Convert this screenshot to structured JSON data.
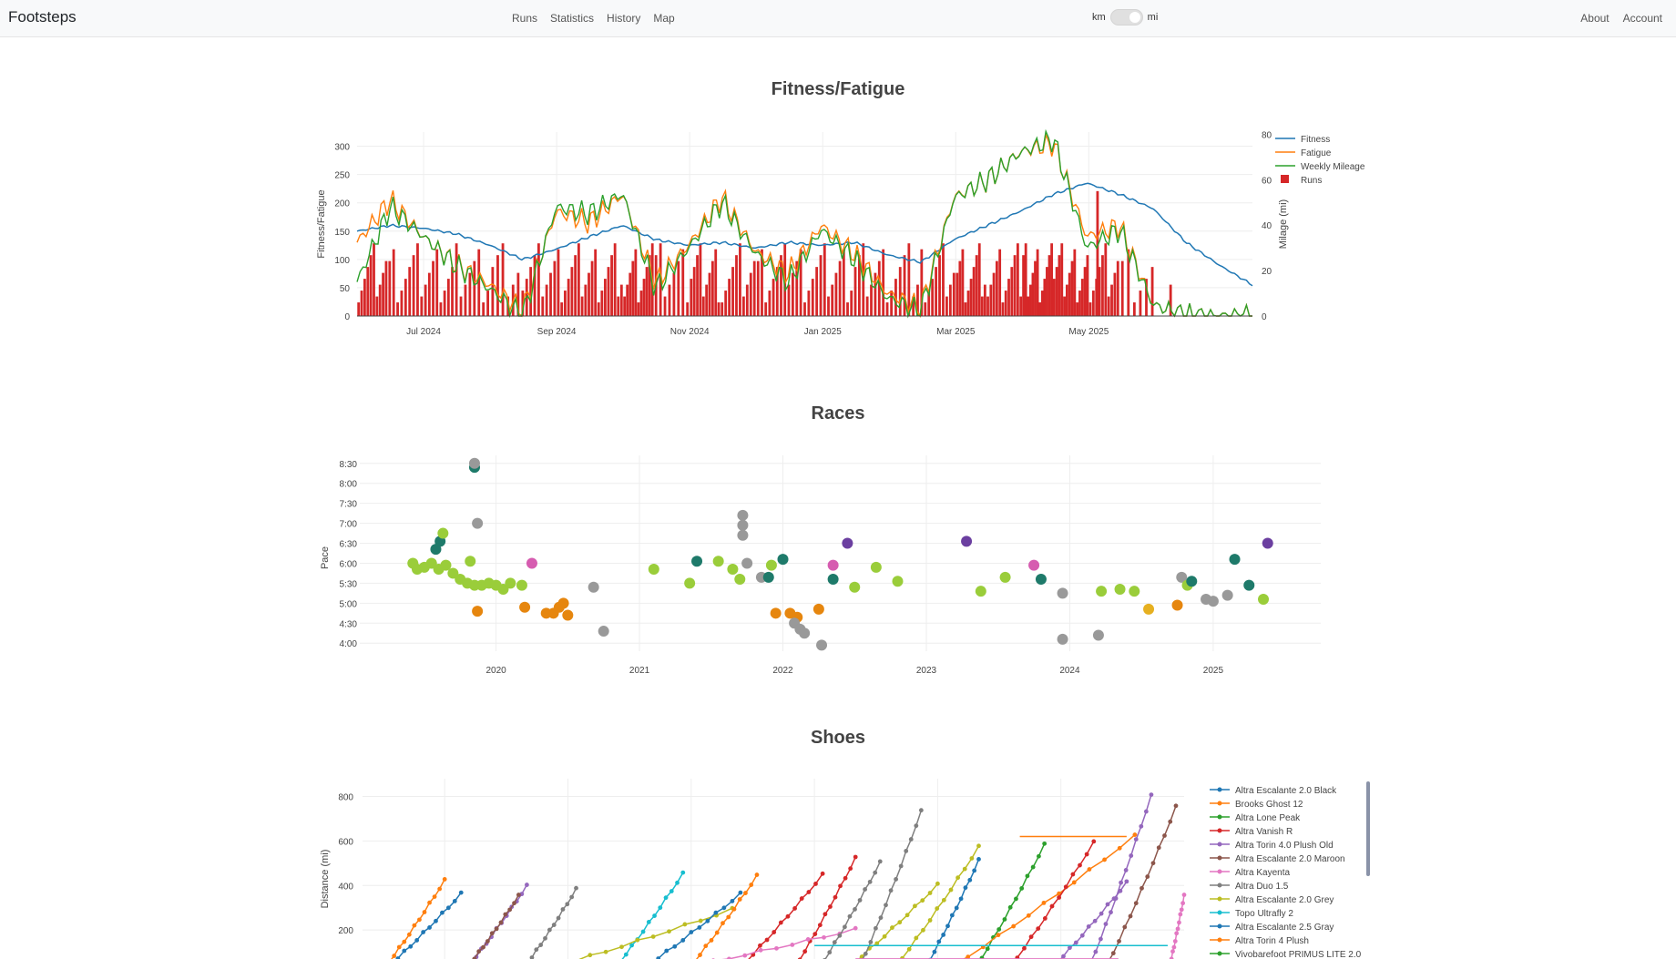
{
  "nav": {
    "brand": "Footsteps",
    "links": [
      "Runs",
      "Statistics",
      "History",
      "Map"
    ],
    "units_left": "km",
    "units_right": "mi",
    "right_links": [
      "About",
      "Account"
    ]
  },
  "colors": {
    "fitness": "#1f77b4",
    "fatigue": "#ff7f0e",
    "weekly": "#2ca02c",
    "runs": "#d62728"
  },
  "chart_data": [
    {
      "type": "line",
      "title": "Fitness/Fatigue",
      "ylabel": "Fitness/Fatigue",
      "y2label": "Milage (mi)",
      "ylim": [
        0,
        325
      ],
      "y2lim": [
        0,
        81
      ],
      "yticks": [
        "0",
        "50",
        "100",
        "150",
        "200",
        "250",
        "300"
      ],
      "y2ticks": [
        "0",
        "20",
        "40",
        "60",
        "80"
      ],
      "xticks": [
        "Jul 2024",
        "Sep 2024",
        "Nov 2024",
        "Jan 2025",
        "Mar 2025",
        "May 2025"
      ],
      "legend": [
        "Fitness",
        "Fatigue",
        "Weekly Mileage",
        "Runs"
      ],
      "x": [
        "2024-06-01",
        "2024-06-15",
        "2024-07-01",
        "2024-07-15",
        "2024-08-01",
        "2024-08-15",
        "2024-09-01",
        "2024-09-15",
        "2024-10-01",
        "2024-10-15",
        "2024-11-01",
        "2024-11-15",
        "2024-12-01",
        "2024-12-15",
        "2025-01-01",
        "2025-01-15",
        "2025-02-01",
        "2025-02-15",
        "2025-03-01",
        "2025-03-15",
        "2025-04-01",
        "2025-04-15",
        "2025-05-01",
        "2025-05-15",
        "2025-06-01",
        "2025-06-15",
        "2025-07-01",
        "2025-07-15"
      ],
      "series": [
        {
          "name": "Fitness",
          "values": [
            150,
            160,
            155,
            145,
            125,
            100,
            118,
            140,
            160,
            135,
            125,
            130,
            120,
            130,
            125,
            130,
            108,
            95,
            135,
            160,
            185,
            215,
            235,
            215,
            190,
            130,
            90,
            55
          ]
        },
        {
          "name": "Fatigue",
          "values": [
            130,
            205,
            140,
            90,
            55,
            10,
            185,
            165,
            215,
            60,
            125,
            210,
            115,
            75,
            160,
            110,
            40,
            15,
            210,
            240,
            290,
            305,
            140,
            160,
            20,
            0,
            0,
            0
          ]
        },
        {
          "name": "Weekly Mileage",
          "values": [
            15,
            48,
            35,
            22,
            12,
            0,
            48,
            45,
            54,
            12,
            30,
            50,
            28,
            15,
            38,
            25,
            8,
            2,
            52,
            60,
            72,
            78,
            30,
            38,
            5,
            0,
            0,
            0
          ]
        }
      ],
      "runs_per_period": [
        10,
        9,
        8,
        8,
        6,
        9,
        9,
        11,
        11,
        8,
        10,
        10,
        8,
        9,
        8,
        9,
        7,
        10,
        11,
        12,
        13,
        14,
        10,
        6,
        1,
        0,
        0,
        0
      ]
    },
    {
      "type": "scatter",
      "title": "Races",
      "ylabel": "Pace",
      "yticks": [
        "4:00",
        "4:30",
        "5:00",
        "5:30",
        "6:00",
        "6:30",
        "7:00",
        "7:30",
        "8:00",
        "8:30"
      ],
      "xticks": [
        "2020",
        "2021",
        "2022",
        "2023",
        "2024",
        "2025"
      ],
      "points": [
        [
          2019.42,
          6.0,
          "#9acd3a"
        ],
        [
          2019.45,
          5.85,
          "#9acd3a"
        ],
        [
          2019.5,
          5.9,
          "#9acd3a"
        ],
        [
          2019.55,
          6.0,
          "#9acd3a"
        ],
        [
          2019.6,
          5.85,
          "#9acd3a"
        ],
        [
          2019.65,
          5.95,
          "#9acd3a"
        ],
        [
          2019.7,
          5.75,
          "#9acd3a"
        ],
        [
          2019.75,
          5.6,
          "#9acd3a"
        ],
        [
          2019.8,
          5.5,
          "#9acd3a"
        ],
        [
          2019.85,
          5.45,
          "#9acd3a"
        ],
        [
          2019.9,
          5.45,
          "#9acd3a"
        ],
        [
          2019.95,
          5.5,
          "#9acd3a"
        ],
        [
          2020.0,
          5.45,
          "#9acd3a"
        ],
        [
          2020.05,
          5.35,
          "#9acd3a"
        ],
        [
          2019.58,
          6.35,
          "#1e7a6a"
        ],
        [
          2019.61,
          6.55,
          "#1e7a6a"
        ],
        [
          2019.63,
          6.75,
          "#9acd3a"
        ],
        [
          2019.82,
          6.05,
          "#9acd3a"
        ],
        [
          2019.87,
          7.0,
          "#999999"
        ],
        [
          2019.85,
          8.4,
          "#1e7a6a"
        ],
        [
          2019.85,
          8.5,
          "#999999"
        ],
        [
          2019.87,
          4.8,
          "#e6860e"
        ],
        [
          2020.1,
          5.5,
          "#9acd3a"
        ],
        [
          2020.18,
          5.45,
          "#9acd3a"
        ],
        [
          2020.25,
          6.0,
          "#d65cb0"
        ],
        [
          2020.2,
          4.9,
          "#e6860e"
        ],
        [
          2020.35,
          4.75,
          "#e6860e"
        ],
        [
          2020.4,
          4.75,
          "#e6860e"
        ],
        [
          2020.44,
          4.9,
          "#e6860e"
        ],
        [
          2020.47,
          5.0,
          "#e6860e"
        ],
        [
          2020.5,
          4.7,
          "#e6860e"
        ],
        [
          2020.68,
          5.4,
          "#999999"
        ],
        [
          2020.75,
          4.3,
          "#999999"
        ],
        [
          2021.1,
          5.85,
          "#9acd3a"
        ],
        [
          2021.35,
          5.5,
          "#9acd3a"
        ],
        [
          2021.4,
          6.05,
          "#1e7a6a"
        ],
        [
          2021.55,
          6.05,
          "#9acd3a"
        ],
        [
          2021.65,
          5.85,
          "#9acd3a"
        ],
        [
          2021.7,
          5.6,
          "#9acd3a"
        ],
        [
          2021.72,
          7.2,
          "#999999"
        ],
        [
          2021.72,
          6.95,
          "#999999"
        ],
        [
          2021.72,
          6.7,
          "#999999"
        ],
        [
          2021.75,
          6.0,
          "#999999"
        ],
        [
          2021.85,
          5.65,
          "#999999"
        ],
        [
          2021.9,
          5.65,
          "#1e7a6a"
        ],
        [
          2021.92,
          5.95,
          "#9acd3a"
        ],
        [
          2022.0,
          6.1,
          "#1e7a6a"
        ],
        [
          2021.95,
          4.75,
          "#e6860e"
        ],
        [
          2022.05,
          4.75,
          "#e6860e"
        ],
        [
          2022.1,
          4.65,
          "#e6860e"
        ],
        [
          2022.08,
          4.5,
          "#999999"
        ],
        [
          2022.12,
          4.35,
          "#999999"
        ],
        [
          2022.15,
          4.25,
          "#999999"
        ],
        [
          2022.25,
          4.85,
          "#e6860e"
        ],
        [
          2022.27,
          3.95,
          "#999999"
        ],
        [
          2022.35,
          5.6,
          "#1e7a6a"
        ],
        [
          2022.35,
          5.95,
          "#d65cb0"
        ],
        [
          2022.45,
          6.5,
          "#6b3fa0"
        ],
        [
          2022.5,
          5.4,
          "#9acd3a"
        ],
        [
          2022.65,
          5.9,
          "#9acd3a"
        ],
        [
          2022.8,
          5.55,
          "#9acd3a"
        ],
        [
          2023.28,
          6.55,
          "#6b3fa0"
        ],
        [
          2023.38,
          5.3,
          "#9acd3a"
        ],
        [
          2023.55,
          5.65,
          "#9acd3a"
        ],
        [
          2023.75,
          5.95,
          "#d65cb0"
        ],
        [
          2023.8,
          5.6,
          "#1e7a6a"
        ],
        [
          2023.95,
          5.25,
          "#999999"
        ],
        [
          2023.95,
          4.1,
          "#999999"
        ],
        [
          2024.2,
          4.2,
          "#999999"
        ],
        [
          2024.22,
          5.3,
          "#9acd3a"
        ],
        [
          2024.35,
          5.35,
          "#9acd3a"
        ],
        [
          2024.45,
          5.3,
          "#9acd3a"
        ],
        [
          2024.55,
          4.85,
          "#e6b020"
        ],
        [
          2024.75,
          4.95,
          "#e6860e"
        ],
        [
          2024.78,
          5.65,
          "#999999"
        ],
        [
          2024.82,
          5.45,
          "#9acd3a"
        ],
        [
          2024.85,
          5.55,
          "#1e7a6a"
        ],
        [
          2024.95,
          5.1,
          "#999999"
        ],
        [
          2025.0,
          5.05,
          "#999999"
        ],
        [
          2025.1,
          5.2,
          "#999999"
        ],
        [
          2025.15,
          6.1,
          "#1e7a6a"
        ],
        [
          2025.25,
          5.45,
          "#1e7a6a"
        ],
        [
          2025.35,
          5.1,
          "#9acd3a"
        ],
        [
          2025.38,
          6.5,
          "#6b3fa0"
        ]
      ]
    },
    {
      "type": "line",
      "title": "Shoes",
      "ylabel": "Distance (mi)",
      "yticks": [
        "200",
        "400",
        "600",
        "800"
      ],
      "legend": [
        {
          "name": "Altra Escalante 2.0 Black",
          "color": "#1f77b4"
        },
        {
          "name": "Brooks Ghost 12",
          "color": "#ff7f0e"
        },
        {
          "name": "Altra Lone Peak",
          "color": "#2ca02c"
        },
        {
          "name": "Altra Vanish R",
          "color": "#d62728"
        },
        {
          "name": "Altra Torin 4.0 Plush Old",
          "color": "#9467bd"
        },
        {
          "name": "Altra Escalante 2.0 Maroon",
          "color": "#8c564b"
        },
        {
          "name": "Altra Kayenta",
          "color": "#e377c2"
        },
        {
          "name": "Altra Duo 1.5",
          "color": "#7f7f7f"
        },
        {
          "name": "Altra Escalante 2.0 Grey",
          "color": "#bcbd22"
        },
        {
          "name": "Topo Ultrafly 2",
          "color": "#17becf"
        },
        {
          "name": "Altra Escalante 2.5 Gray",
          "color": "#1f77b4"
        },
        {
          "name": "Altra Torin 4 Plush",
          "color": "#ff7f0e"
        },
        {
          "name": "Vivobarefoot PRIMUS LITE 2.0",
          "color": "#2ca02c"
        }
      ],
      "shoes": [
        {
          "c": "#1f77b4",
          "s": 0.02,
          "e": 0.12,
          "m": 360
        },
        {
          "c": "#ff7f0e",
          "s": 0.02,
          "e": 0.1,
          "m": 420
        },
        {
          "c": "#9467bd",
          "s": 0.12,
          "e": 0.2,
          "m": 395
        },
        {
          "c": "#8c564b",
          "s": 0.12,
          "e": 0.19,
          "m": 350
        },
        {
          "c": "#7f7f7f",
          "s": 0.19,
          "e": 0.26,
          "m": 380
        },
        {
          "c": "#17becf",
          "s": 0.3,
          "e": 0.39,
          "m": 450
        },
        {
          "c": "#bcbd22",
          "s": 0.2,
          "e": 0.45,
          "m": 290
        },
        {
          "c": "#1f77b4",
          "s": 0.33,
          "e": 0.46,
          "m": 360
        },
        {
          "c": "#ff7f0e",
          "s": 0.39,
          "e": 0.48,
          "m": 440
        },
        {
          "c": "#d62728",
          "s": 0.45,
          "e": 0.56,
          "m": 445
        },
        {
          "c": "#d62728",
          "s": 0.52,
          "e": 0.6,
          "m": 520
        },
        {
          "c": "#e377c2",
          "s": 0.35,
          "e": 0.6,
          "m": 200
        },
        {
          "c": "#7f7f7f",
          "s": 0.55,
          "e": 0.63,
          "m": 500
        },
        {
          "c": "#bcbd22",
          "s": 0.58,
          "e": 0.7,
          "m": 400
        },
        {
          "c": "#7f7f7f",
          "s": 0.6,
          "e": 0.68,
          "m": 730
        },
        {
          "c": "#bcbd22",
          "s": 0.64,
          "e": 0.75,
          "m": 570
        },
        {
          "c": "#1f77b4",
          "s": 0.68,
          "e": 0.75,
          "m": 510
        },
        {
          "c": "#2ca02c",
          "s": 0.74,
          "e": 0.83,
          "m": 580
        },
        {
          "c": "#ff7f0e",
          "s": 0.7,
          "e": 0.94,
          "m": 620
        },
        {
          "c": "#d62728",
          "s": 0.78,
          "e": 0.89,
          "m": 590
        },
        {
          "c": "#9467bd",
          "s": 0.83,
          "e": 0.93,
          "m": 410
        },
        {
          "c": "#9467bd",
          "s": 0.88,
          "e": 0.96,
          "m": 800
        },
        {
          "c": "#8c564b",
          "s": 0.9,
          "e": 0.99,
          "m": 750
        },
        {
          "c": "#e377c2",
          "s": 0.98,
          "e": 1.02,
          "m": 350
        }
      ]
    }
  ]
}
